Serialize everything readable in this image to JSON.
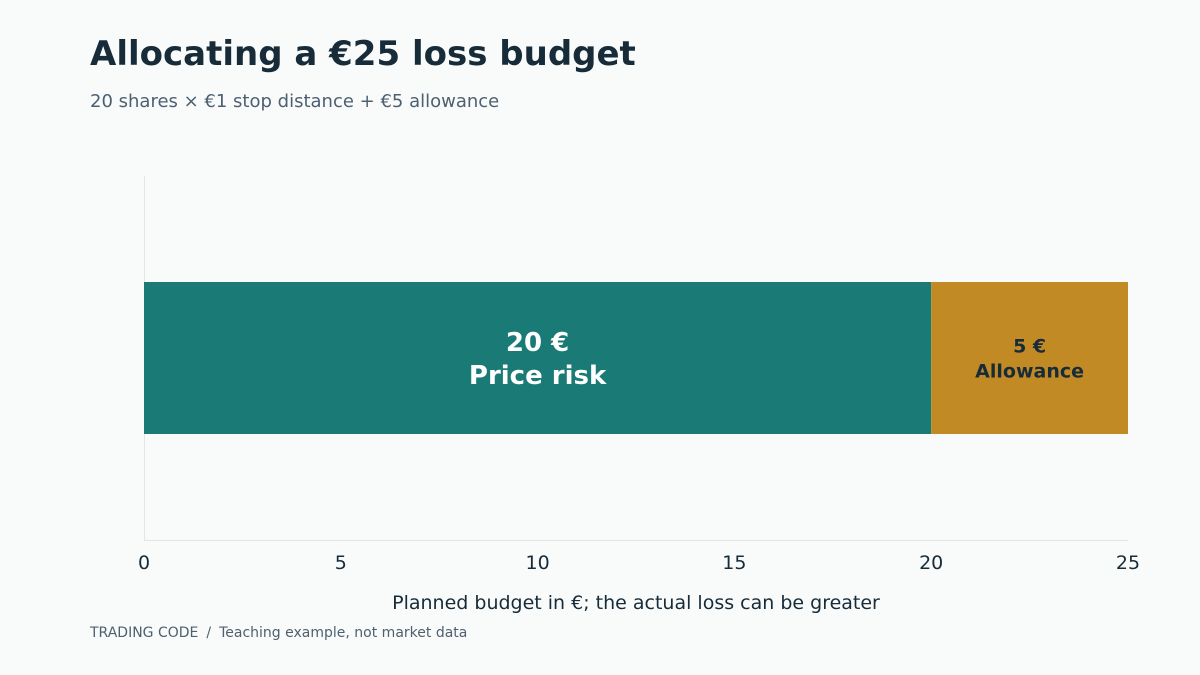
{
  "title": "Allocating a €25 loss budget",
  "subtitle": "20 shares × €1 stop distance + €5 allowance",
  "footer": {
    "brand": "TRADING CODE",
    "separator": "/",
    "note": "Teaching example, not market data"
  },
  "chart_data": {
    "type": "bar",
    "orientation": "horizontal",
    "stacked": true,
    "xlabel": "Planned budget in €; the actual loss can be greater",
    "xlim": [
      0,
      25
    ],
    "xticks": [
      "0",
      "5",
      "10",
      "15",
      "20",
      "25"
    ],
    "grid": false,
    "segments": [
      {
        "name": "Price risk",
        "value": 20,
        "value_label": "20 €",
        "label": "Price risk",
        "color": "#1a7a75",
        "text_color": "#ffffff"
      },
      {
        "name": "Allowance",
        "value": 5,
        "value_label": "5 €",
        "label": "Allowance",
        "color": "#c28a24",
        "text_color": "#172b38"
      }
    ]
  }
}
